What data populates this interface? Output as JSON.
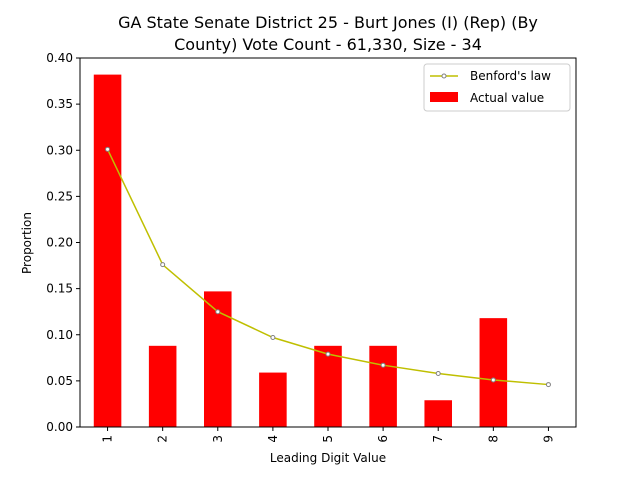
{
  "chart_data": {
    "type": "bar",
    "title_line1": "GA State Senate District 25 - Burt Jones (I) (Rep) (By",
    "title_line2": "County) Vote Count - 61,330, Size - 34",
    "xlabel": "Leading Digit Value",
    "ylabel": "Proportion",
    "categories": [
      "1",
      "2",
      "3",
      "4",
      "5",
      "6",
      "7",
      "8",
      "9"
    ],
    "ylim": [
      0,
      0.4
    ],
    "yticks": [
      0.0,
      0.05,
      0.1,
      0.15,
      0.2,
      0.25,
      0.3,
      0.35,
      0.4
    ],
    "ytick_labels": [
      "0.00",
      "0.05",
      "0.10",
      "0.15",
      "0.20",
      "0.25",
      "0.30",
      "0.35",
      "0.40"
    ],
    "series": [
      {
        "name": "Actual value",
        "kind": "bar",
        "color": "#ff0000",
        "values": [
          0.382,
          0.088,
          0.147,
          0.059,
          0.088,
          0.088,
          0.029,
          0.118,
          0.0
        ]
      },
      {
        "name": "Benford's law",
        "kind": "line",
        "color": "#bfbf00",
        "values": [
          0.301,
          0.176,
          0.125,
          0.097,
          0.079,
          0.067,
          0.058,
          0.051,
          0.046
        ]
      }
    ],
    "legend_position": "top-right",
    "grid": false
  }
}
